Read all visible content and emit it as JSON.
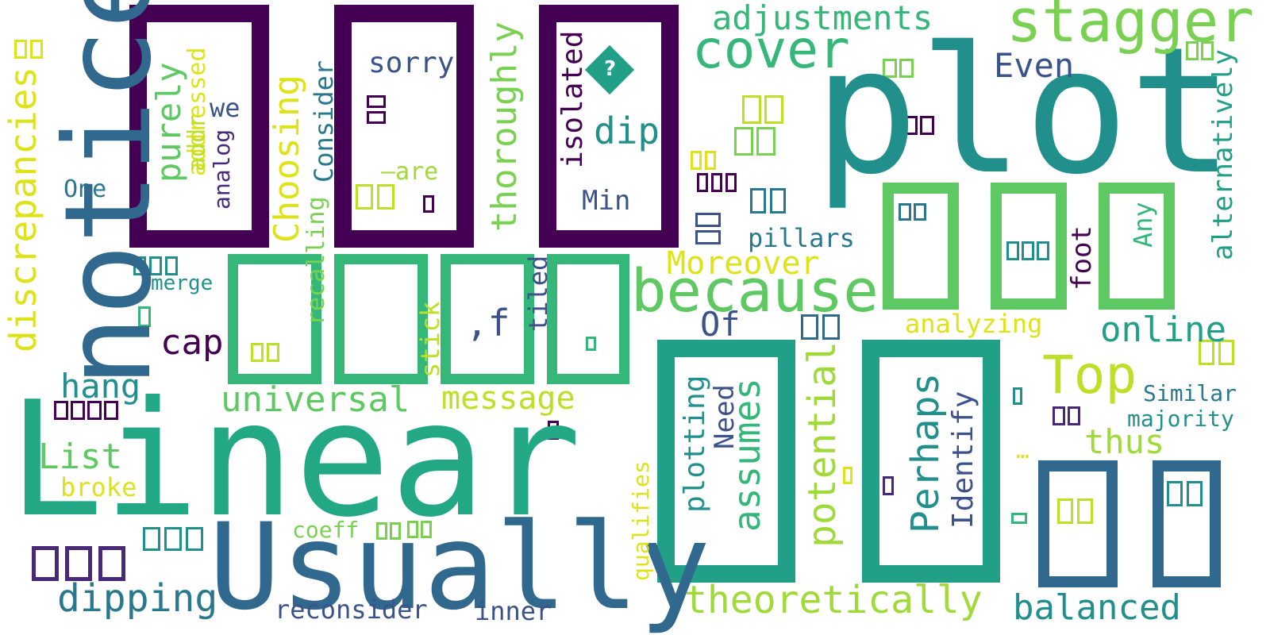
{
  "words": {
    "plot": "plot",
    "linear": "Linear",
    "notice": "notice",
    "usually": "Usually",
    "because": "because",
    "stagger": "stagger",
    "cover": "cover",
    "adjustments": "adjustments",
    "top": "Top",
    "theoretically": "theoretically",
    "balanced": "balanced",
    "online": "online",
    "universal": "universal",
    "message": "message",
    "dipping": "dipping",
    "moreover": "Moreover",
    "even": "Even",
    "thus": "thus",
    "potential": "potential",
    "assumes": "assumes",
    "perhaps": "Perhaps",
    "dip": "dip",
    "list": "List",
    "hang": "hang",
    "cap": "cap",
    "of": "Of",
    "sorry": "sorry",
    "min": "Min",
    "pillars": "pillars",
    "analyzing": "analyzing",
    "similar": "Similar",
    "majority": "majority",
    "broke": "broke",
    "reconsider": "reconsider",
    "inner": "inner",
    "coeff": "coeff",
    "merge": "merge",
    "one": "One",
    "we": "we",
    "are": "—are",
    "comma_f": ",f",
    "ellipsis": "…",
    "discrepancies": "discrepancies",
    "purely": "purely",
    "addressed": "addressed",
    "addr": "addr",
    "analog": "analog",
    "choosing": "Choosing",
    "consider": "Consider",
    "recalling": "recalling",
    "thoroughly": "thoroughly",
    "isolated": "isolated",
    "stick": "stick",
    "tiled": "tiled",
    "plotting": "plotting",
    "need": "Need",
    "identify": "Identify",
    "foot": "foot",
    "any": "Any",
    "alternatively": "alternatively",
    "qualifies": "qualifies"
  },
  "colors": {
    "background": "#ffffff",
    "dark_purple": "#440154",
    "indigo": "#3b528b",
    "blue": "#31688e",
    "teal": "#21908d",
    "green": "#35b779",
    "sea_green": "#22a884",
    "lime": "#7ad151",
    "yellow": "#bddf26",
    "bright_yellow": "#dde318"
  }
}
